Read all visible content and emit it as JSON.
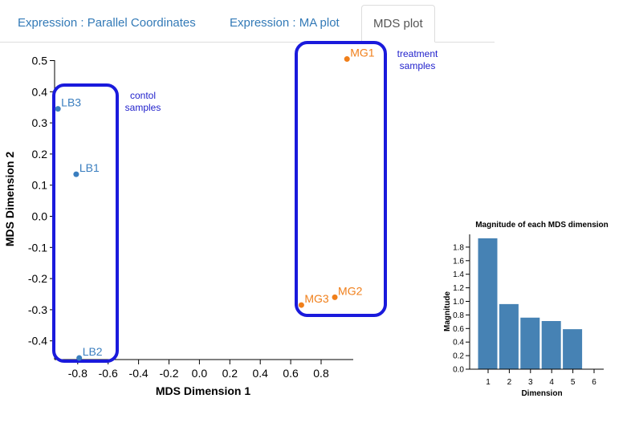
{
  "tabs": [
    {
      "label": "Expression : Parallel Coordinates",
      "active": false
    },
    {
      "label": "Expression : MA plot",
      "active": false
    },
    {
      "label": "MDS plot",
      "active": true
    }
  ],
  "chart_data": [
    {
      "type": "scatter",
      "xlabel": "MDS Dimension 1",
      "ylabel": "MDS Dimension 2",
      "xlim": [
        -0.95,
        0.95
      ],
      "ylim": [
        -0.46,
        0.52
      ],
      "x_ticks": [
        "-0.8",
        "-0.6",
        "-0.4",
        "-0.2",
        "0.0",
        "0.2",
        "0.4",
        "0.6",
        "0.8"
      ],
      "y_ticks": [
        "0.5",
        "0.4",
        "0.3",
        "0.2",
        "0.1",
        "0.0",
        "-0.1",
        "-0.2",
        "-0.3",
        "-0.4"
      ],
      "series": [
        {
          "color": "#3a7ebf",
          "points": [
            {
              "label": "LB3",
              "x": -0.93,
              "y": 0.345
            },
            {
              "label": "LB1",
              "x": -0.81,
              "y": 0.135
            },
            {
              "label": "LB2",
              "x": -0.79,
              "y": -0.455
            }
          ]
        },
        {
          "color": "#f07f1a",
          "points": [
            {
              "label": "MG1",
              "x": 0.97,
              "y": 0.505
            },
            {
              "label": "MG2",
              "x": 0.89,
              "y": -0.26
            },
            {
              "label": "MG3",
              "x": 0.67,
              "y": -0.285
            }
          ]
        }
      ],
      "annotations": [
        {
          "lines": [
            "contol",
            "samples"
          ],
          "color": "#2222cc"
        },
        {
          "lines": [
            "treatment",
            "samples"
          ],
          "color": "#2222cc"
        }
      ]
    },
    {
      "type": "bar",
      "title": "Magnitude of each MDS dimension",
      "xlabel": "Dimension",
      "ylabel": "Magnitude",
      "categories": [
        1,
        2,
        3,
        4,
        5
      ],
      "values": [
        1.93,
        0.96,
        0.76,
        0.71,
        0.59
      ],
      "ylim": [
        0,
        1.95
      ],
      "x_ticks": [
        "1",
        "2",
        "3",
        "4",
        "5",
        "6"
      ],
      "y_ticks": [
        "0.0",
        "0.2",
        "0.4",
        "0.6",
        "0.8",
        "1.0",
        "1.2",
        "1.4",
        "1.6",
        "1.8"
      ],
      "color": "#4682b4"
    }
  ]
}
